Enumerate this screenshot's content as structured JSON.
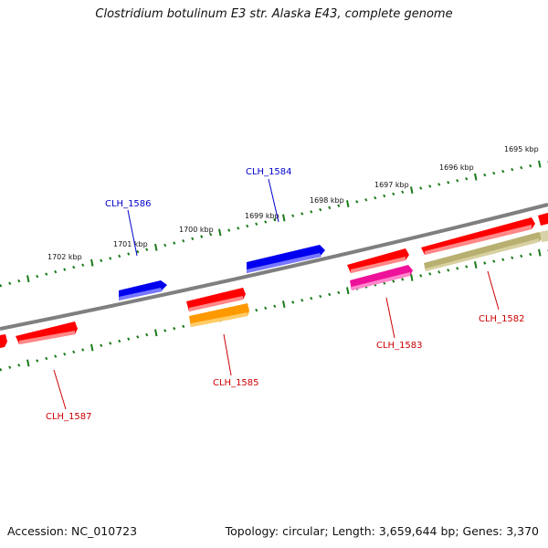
{
  "title": "Clostridium botulinum E3 str. Alaska E43, complete genome",
  "footer": {
    "accession": "Accession: NC_010723",
    "summary": "Topology: circular; Length: 3,659,644 bp; Genes: 3,370"
  },
  "scale_labels": [
    "1695 kbp",
    "1696 kbp",
    "1697 kbp",
    "1698 kbp",
    "1699 kbp",
    "1700 kbp",
    "1701 kbp",
    "1702 kbp"
  ],
  "gene_labels": [
    {
      "text": "CLH_1584",
      "color": "#0000cc"
    },
    {
      "text": "CLH_1586",
      "color": "#0000cc"
    },
    {
      "text": "CLH_1585",
      "color": "#cc0000"
    },
    {
      "text": "CLH_1583",
      "color": "#cc0000"
    },
    {
      "text": "CLH_1582",
      "color": "#cc0000"
    },
    {
      "text": "CLH_1587",
      "color": "#cc0000"
    }
  ],
  "colors": {
    "backbone": "#7f7f7f",
    "ticks": "#1a7a1a",
    "red": "#ff0000",
    "blue": "#0000ee",
    "orange": "#ff9900",
    "magenta": "#ee1199",
    "khaki": "#b8b070"
  }
}
